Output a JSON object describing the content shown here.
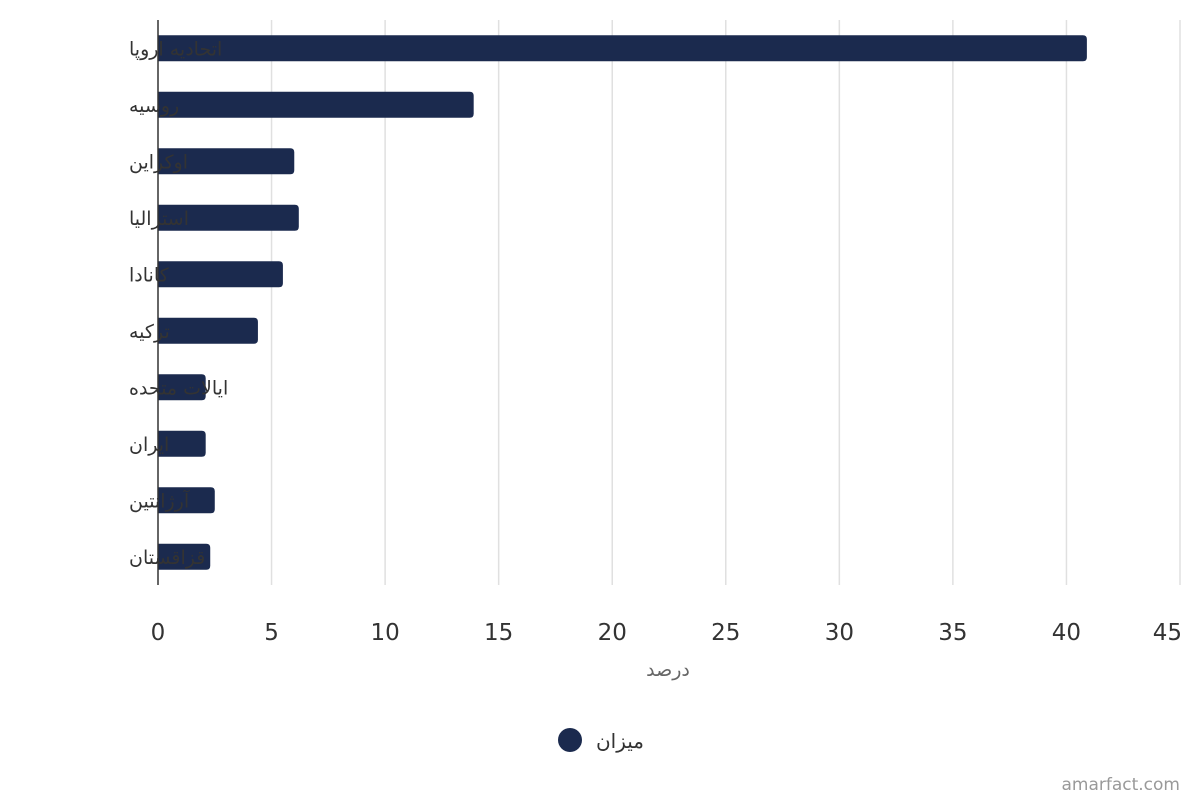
{
  "chart_data": {
    "type": "bar",
    "orientation": "horizontal",
    "categories": [
      "اتحادیه اروپا",
      "روسیه",
      "اوکراین",
      "استرالیا",
      "کانادا",
      "ترکیه",
      "ایالات متحده",
      "ایران",
      "آرژانتین",
      "قزاقستان"
    ],
    "series": [
      {
        "name": "میزان",
        "values": [
          40.9,
          13.9,
          6.0,
          6.2,
          5.5,
          4.4,
          2.1,
          2.1,
          2.5,
          2.3
        ],
        "color": "#1b2a4e"
      }
    ],
    "xlabel": "درصد",
    "xlim": [
      0,
      45
    ],
    "xticks": [
      0,
      5,
      10,
      15,
      20,
      25,
      30,
      35,
      40,
      45
    ],
    "grid": true,
    "legend_position": "bottom-center"
  },
  "credit": "amarfact.com"
}
